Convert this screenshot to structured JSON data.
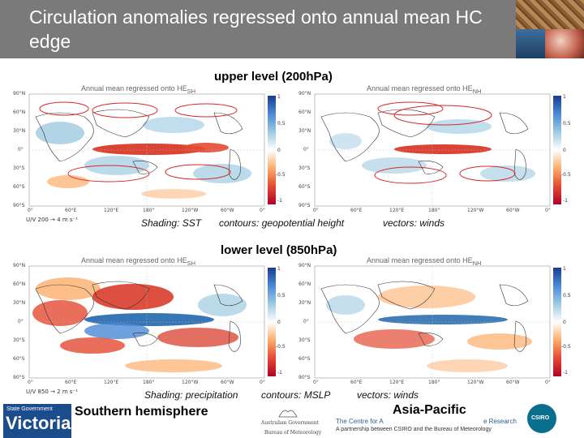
{
  "slide": {
    "title": "Circulation anomalies regressed onto annual mean HC edge"
  },
  "upper": {
    "heading": "upper level (200hPa)",
    "caption_shading": "Shading: SST",
    "caption_contours": "contours: geopotential height",
    "caption_vectors": "vectors: winds",
    "map_title_left": "Annual mean regressed onto HE",
    "map_title_right": "Annual mean regressed onto HE",
    "title_sub_left": "SH",
    "title_sub_right": "NH",
    "vector_key": "U/V 200 → 4 m s⁻¹",
    "colorbar_ticks": [
      "1",
      "0.5",
      "0",
      "-0.5",
      "-1"
    ]
  },
  "lower": {
    "heading": "lower level (850hPa)",
    "caption_shading": "Shading: precipitation",
    "caption_contours": "contours: MSLP",
    "caption_vectors": "vectors: winds",
    "map_title_left": "Annual mean regressed onto HE",
    "map_title_right": "Annual mean regressed onto HE",
    "title_sub_left": "SH",
    "title_sub_right": "NH",
    "vector_key": "U/V 850 → 2 m s⁻¹",
    "colorbar_ticks": [
      "1",
      "0.5",
      "0",
      "-0.5",
      "-1"
    ]
  },
  "axes": {
    "lat_labels": [
      "90°N",
      "60°N",
      "30°N",
      "0°",
      "30°S",
      "60°S",
      "90°S"
    ],
    "lon_labels": [
      "0°",
      "60°E",
      "120°E",
      "180°",
      "120°W",
      "60°W",
      "0°"
    ]
  },
  "footer": {
    "state_gov": "State Government",
    "victoria": "Victoria",
    "southern_hemisphere": "Southern hemisphere",
    "gov_line1": "Australian Government",
    "gov_line2": "Bureau of Meteorology",
    "cawcr_left": "The Centre for A",
    "asia_pacific": "Asia-Pacific",
    "cawcr_right": "e Research",
    "partnership": "A partnership between CSIRO and the Bureau of Meteorology",
    "csiro": "CSIRO"
  },
  "colors": {
    "title_bg": "#7a7a7a",
    "warm": "#d7301f",
    "cool": "#2166ac",
    "contour": "#d62728"
  }
}
